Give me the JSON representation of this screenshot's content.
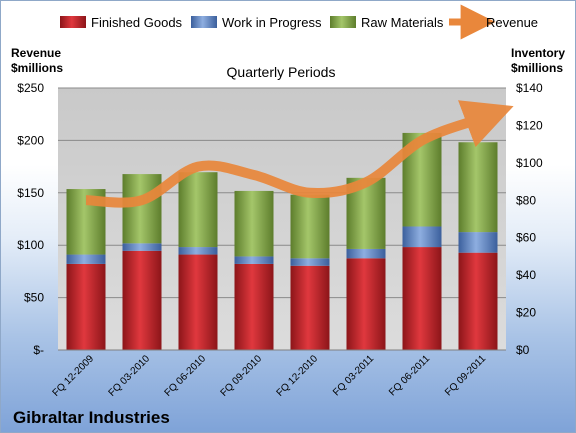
{
  "chart_data": {
    "type": "bar",
    "stacked": true,
    "title": "Quarterly Periods",
    "company": "Gibraltar Industries",
    "y_left_label_line1": "Revenue",
    "y_left_label_line2": "$millions",
    "y_right_label_line1": "Inventory",
    "y_right_label_line2": "$millions",
    "y_left_ticks": [
      "$-",
      "$50",
      "$100",
      "$150",
      "$200",
      "$250"
    ],
    "y_right_ticks": [
      "$0",
      "$20",
      "$40",
      "$60",
      "$80",
      "$100",
      "$120",
      "$140"
    ],
    "y_left_range": [
      0,
      250
    ],
    "y_right_range": [
      0,
      140
    ],
    "categories": [
      "FQ 12-2009",
      "FQ 03-2010",
      "FQ 06-2010",
      "FQ 09-2010",
      "FQ 12-2010",
      "FQ 03-2011",
      "FQ 06-2011",
      "FQ 09-2011"
    ],
    "series": [
      {
        "name": "Finished Goods",
        "axis": "right",
        "color": "#c0272d",
        "values": [
          46,
          53,
          51,
          46,
          45,
          49,
          55,
          52
        ]
      },
      {
        "name": "Work in Progress",
        "axis": "right",
        "color": "#5b82c4",
        "values": [
          5,
          4,
          4,
          4,
          4,
          5,
          11,
          11
        ]
      },
      {
        "name": "Raw Materials",
        "axis": "right",
        "color": "#82a74a",
        "values": [
          35,
          37,
          40,
          35,
          34,
          38,
          50,
          48
        ]
      },
      {
        "name": "Revenue",
        "axis": "left",
        "type": "line",
        "color": "#e9873b",
        "values": [
          143,
          143,
          175,
          167,
          150,
          160,
          200,
          220
        ]
      }
    ],
    "grid": true,
    "legend_position": "top"
  }
}
